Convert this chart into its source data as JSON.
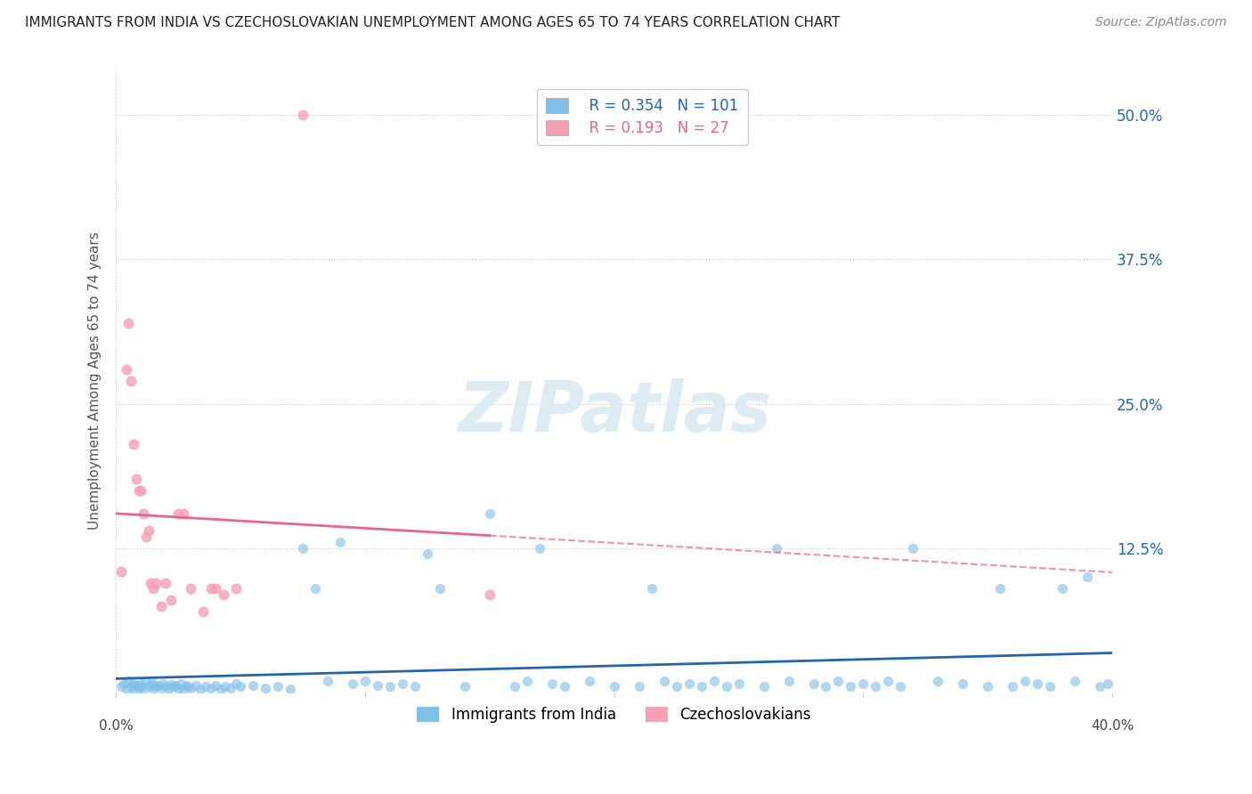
{
  "title": "IMMIGRANTS FROM INDIA VS CZECHOSLOVAKIAN UNEMPLOYMENT AMONG AGES 65 TO 74 YEARS CORRELATION CHART",
  "source": "Source: ZipAtlas.com",
  "ylabel": "Unemployment Among Ages 65 to 74 years",
  "ytick_labels": [
    "",
    "12.5%",
    "25.0%",
    "37.5%",
    "50.0%"
  ],
  "ytick_values": [
    0,
    0.125,
    0.25,
    0.375,
    0.5
  ],
  "xlim": [
    0.0,
    0.4
  ],
  "ylim": [
    0.0,
    0.54
  ],
  "legend_r1": "R = 0.354",
  "legend_n1": "N = 101",
  "legend_r2": "R = 0.193",
  "legend_n2": "N = 27",
  "color_india": "#7fbfe8",
  "color_czech": "#f4a0b5",
  "color_india_line": "#2166ac",
  "color_czech_line": "#e8668a",
  "watermark": "ZIPatlas",
  "india_scatter_x": [
    0.002,
    0.003,
    0.004,
    0.005,
    0.006,
    0.007,
    0.007,
    0.008,
    0.009,
    0.01,
    0.01,
    0.011,
    0.012,
    0.013,
    0.014,
    0.015,
    0.015,
    0.016,
    0.017,
    0.018,
    0.019,
    0.02,
    0.021,
    0.022,
    0.023,
    0.024,
    0.025,
    0.026,
    0.027,
    0.028,
    0.029,
    0.03,
    0.032,
    0.034,
    0.036,
    0.038,
    0.04,
    0.042,
    0.044,
    0.046,
    0.048,
    0.05,
    0.055,
    0.06,
    0.065,
    0.07,
    0.075,
    0.08,
    0.085,
    0.09,
    0.095,
    0.1,
    0.105,
    0.11,
    0.115,
    0.12,
    0.125,
    0.13,
    0.14,
    0.15,
    0.16,
    0.165,
    0.17,
    0.175,
    0.18,
    0.19,
    0.2,
    0.21,
    0.215,
    0.22,
    0.225,
    0.23,
    0.235,
    0.24,
    0.245,
    0.25,
    0.26,
    0.265,
    0.27,
    0.28,
    0.285,
    0.29,
    0.295,
    0.3,
    0.305,
    0.31,
    0.315,
    0.32,
    0.33,
    0.34,
    0.35,
    0.355,
    0.36,
    0.365,
    0.37,
    0.375,
    0.38,
    0.385,
    0.39,
    0.395,
    0.398
  ],
  "india_scatter_y": [
    0.005,
    0.008,
    0.003,
    0.01,
    0.005,
    0.008,
    0.003,
    0.006,
    0.004,
    0.008,
    0.005,
    0.003,
    0.01,
    0.005,
    0.007,
    0.003,
    0.008,
    0.005,
    0.006,
    0.004,
    0.008,
    0.005,
    0.003,
    0.007,
    0.005,
    0.006,
    0.004,
    0.008,
    0.003,
    0.006,
    0.005,
    0.004,
    0.006,
    0.003,
    0.005,
    0.004,
    0.006,
    0.003,
    0.005,
    0.004,
    0.008,
    0.005,
    0.006,
    0.004,
    0.005,
    0.003,
    0.125,
    0.09,
    0.01,
    0.13,
    0.008,
    0.01,
    0.006,
    0.005,
    0.008,
    0.005,
    0.12,
    0.09,
    0.005,
    0.155,
    0.005,
    0.01,
    0.125,
    0.008,
    0.005,
    0.01,
    0.005,
    0.005,
    0.09,
    0.01,
    0.005,
    0.008,
    0.005,
    0.01,
    0.005,
    0.008,
    0.005,
    0.125,
    0.01,
    0.008,
    0.005,
    0.01,
    0.005,
    0.008,
    0.005,
    0.01,
    0.005,
    0.125,
    0.01,
    0.008,
    0.005,
    0.09,
    0.005,
    0.01,
    0.008,
    0.005,
    0.09,
    0.01,
    0.1,
    0.005,
    0.008
  ],
  "czech_scatter_x": [
    0.002,
    0.004,
    0.005,
    0.006,
    0.007,
    0.008,
    0.009,
    0.01,
    0.011,
    0.012,
    0.013,
    0.014,
    0.015,
    0.016,
    0.018,
    0.02,
    0.022,
    0.025,
    0.027,
    0.03,
    0.035,
    0.038,
    0.04,
    0.043,
    0.048,
    0.075,
    0.15
  ],
  "czech_scatter_y": [
    0.105,
    0.28,
    0.32,
    0.27,
    0.215,
    0.185,
    0.175,
    0.175,
    0.155,
    0.135,
    0.14,
    0.095,
    0.09,
    0.095,
    0.075,
    0.095,
    0.08,
    0.155,
    0.155,
    0.09,
    0.07,
    0.09,
    0.09,
    0.085,
    0.09,
    0.5,
    0.085
  ]
}
